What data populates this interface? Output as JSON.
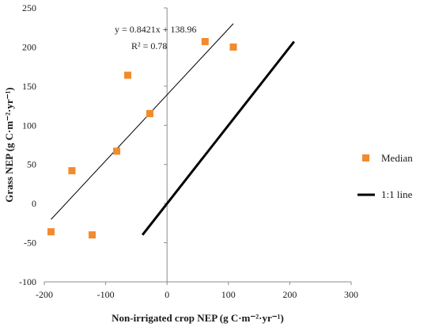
{
  "chart_data": {
    "type": "scatter",
    "xlabel": "Non-irrigated crop NEP (g C·m⁻²·yr⁻¹)",
    "ylabel": "Grass NEP (g C·m⁻²·yr⁻¹)",
    "xlim": [
      -200,
      300
    ],
    "ylim": [
      -100,
      250
    ],
    "xticks": [
      -200,
      -100,
      0,
      100,
      200,
      300
    ],
    "yticks": [
      -100,
      -50,
      0,
      50,
      100,
      150,
      200,
      250
    ],
    "grid": false,
    "legend_position": "right",
    "series": [
      {
        "name": "Median",
        "kind": "points",
        "color": "#f28a2e",
        "marker": "square",
        "points": [
          {
            "x": -189,
            "y": -36
          },
          {
            "x": -155,
            "y": 42
          },
          {
            "x": -122,
            "y": -40
          },
          {
            "x": -82,
            "y": 67
          },
          {
            "x": -64,
            "y": 164
          },
          {
            "x": -28,
            "y": 115
          },
          {
            "x": 62,
            "y": 207
          },
          {
            "x": 108,
            "y": 200
          }
        ]
      },
      {
        "name": "1:1 line",
        "kind": "line",
        "color": "#000000",
        "points": [
          {
            "x": -40,
            "y": -40
          },
          {
            "x": 207,
            "y": 207
          }
        ]
      }
    ],
    "trendline": {
      "equation": "y = 0.8421x + 138.96",
      "r2": "R² = 0.78",
      "slope": 0.8421,
      "intercept": 138.96,
      "x_start": -189,
      "x_end": 108,
      "color": "#000000"
    }
  }
}
